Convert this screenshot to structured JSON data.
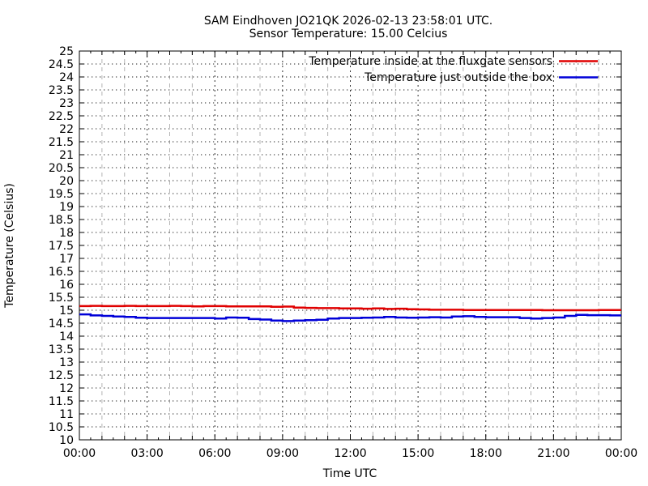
{
  "chart_data": {
    "type": "line",
    "title": "SAM Eindhoven JO21QK 2026-02-13 23:58:01 UTC.",
    "subtitle": "Sensor Temperature: 15.00 Celcius",
    "xlabel": "Time UTC",
    "ylabel": "Temperature (Celsius)",
    "ylim": [
      10,
      25
    ],
    "ytick_step": 0.5,
    "xlim_hours": [
      0,
      24
    ],
    "xtick_step_hours": 3,
    "minor_x_grid_step_hours": 1,
    "grid": true,
    "legend_position": "top-right-inside",
    "xticklabels": [
      "00:00",
      "03:00",
      "06:00",
      "09:00",
      "12:00",
      "15:00",
      "18:00",
      "21:00",
      "00:00"
    ],
    "x_hours": [
      0,
      0.5,
      1,
      1.5,
      2,
      2.5,
      3,
      3.5,
      4,
      4.5,
      5,
      5.5,
      6,
      6.5,
      7,
      7.5,
      8,
      8.5,
      9,
      9.5,
      10,
      10.5,
      11,
      11.5,
      12,
      12.5,
      13,
      13.5,
      14,
      14.5,
      15,
      15.5,
      16,
      16.5,
      17,
      17.5,
      18,
      18.5,
      19,
      19.5,
      20,
      20.5,
      21,
      21.5,
      22,
      22.5,
      23,
      23.5,
      24
    ],
    "series": [
      {
        "name": "Temperature inside at the fluxgate sensors",
        "color": "#e00000",
        "values": [
          15.16,
          15.17,
          15.16,
          15.16,
          15.17,
          15.16,
          15.16,
          15.16,
          15.17,
          15.16,
          15.15,
          15.16,
          15.16,
          15.15,
          15.15,
          15.15,
          15.15,
          15.13,
          15.14,
          15.1,
          15.09,
          15.08,
          15.08,
          15.07,
          15.07,
          15.06,
          15.07,
          15.05,
          15.06,
          15.04,
          15.03,
          15.02,
          15.02,
          15.02,
          15.01,
          15.01,
          15.01,
          15.01,
          15.01,
          15.01,
          15.01,
          15.0,
          15.0,
          15.0,
          15.0,
          15.0,
          15.01,
          15.01,
          15.01
        ]
      },
      {
        "name": "Temperature just outside the box",
        "color": "#0000d8",
        "values": [
          14.84,
          14.8,
          14.78,
          14.76,
          14.74,
          14.71,
          14.7,
          14.7,
          14.7,
          14.7,
          14.7,
          14.7,
          14.68,
          14.72,
          14.71,
          14.66,
          14.64,
          14.6,
          14.58,
          14.6,
          14.62,
          14.63,
          14.68,
          14.7,
          14.7,
          14.71,
          14.72,
          14.74,
          14.72,
          14.71,
          14.72,
          14.73,
          14.72,
          14.76,
          14.77,
          14.74,
          14.73,
          14.73,
          14.73,
          14.7,
          14.68,
          14.7,
          14.72,
          14.78,
          14.82,
          14.81,
          14.81,
          14.8,
          14.8
        ]
      }
    ]
  }
}
